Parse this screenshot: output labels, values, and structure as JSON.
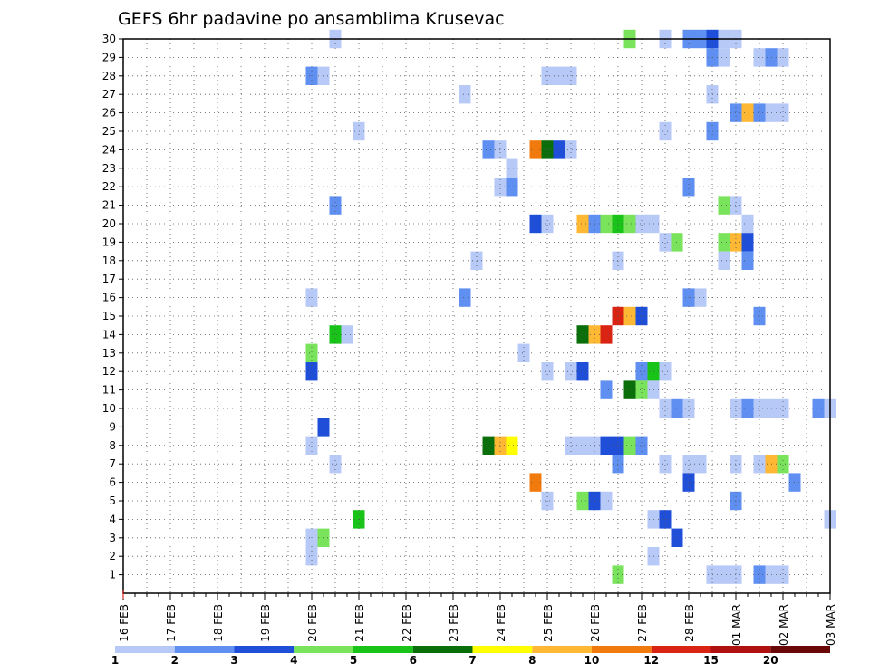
{
  "chart_data": {
    "type": "heatmap",
    "title": "GEFS 6hr padavine po ansamblima Krusevac",
    "x_tick_labels": [
      "16 FEB",
      "17 FEB",
      "18 FEB",
      "19 FEB",
      "20 FEB",
      "21 FEB",
      "22 FEB",
      "23 FEB",
      "24 FEB",
      "25 FEB",
      "26 FEB",
      "27 FEB",
      "28 FEB",
      "01 MAR",
      "02 MAR",
      "03 MAR"
    ],
    "xlim": [
      0,
      60
    ],
    "ylim": [
      0,
      30
    ],
    "y_tick_labels": [
      "1",
      "2",
      "3",
      "4",
      "5",
      "6",
      "7",
      "8",
      "9",
      "10",
      "11",
      "12",
      "13",
      "14",
      "15",
      "16",
      "17",
      "18",
      "19",
      "20",
      "21",
      "22",
      "23",
      "24",
      "25",
      "26",
      "27",
      "28",
      "29",
      "30"
    ],
    "grid": true,
    "colorbar": {
      "labels": [
        "1",
        "2",
        "3",
        "4",
        "5",
        "6",
        "7",
        "8",
        "10",
        "12",
        "15",
        "20"
      ],
      "colors": [
        "#b7c9f7",
        "#5f8ff0",
        "#1f4fd8",
        "#79e35b",
        "#18c418",
        "#0a6e0a",
        "#ffff00",
        "#ffb833",
        "#f07a0d",
        "#d92414",
        "#b11010",
        "#6a0808"
      ]
    },
    "cells": [
      [
        18,
        30,
        1
      ],
      [
        43,
        30,
        4
      ],
      [
        46,
        30,
        1
      ],
      [
        48,
        30,
        2
      ],
      [
        49,
        30,
        2
      ],
      [
        50,
        30,
        3
      ],
      [
        51,
        30,
        1
      ],
      [
        52,
        30,
        1
      ],
      [
        50,
        29,
        2
      ],
      [
        51,
        29,
        1
      ],
      [
        54,
        29,
        1
      ],
      [
        55,
        29,
        2
      ],
      [
        56,
        29,
        1
      ],
      [
        16,
        28,
        2
      ],
      [
        17,
        28,
        1
      ],
      [
        36,
        28,
        1
      ],
      [
        37,
        28,
        1
      ],
      [
        38,
        28,
        1
      ],
      [
        29,
        27,
        1
      ],
      [
        50,
        27,
        1
      ],
      [
        52,
        26,
        2
      ],
      [
        53,
        26,
        8
      ],
      [
        54,
        26,
        2
      ],
      [
        55,
        26,
        1
      ],
      [
        56,
        26,
        1
      ],
      [
        20,
        25,
        1
      ],
      [
        46,
        25,
        1
      ],
      [
        50,
        25,
        2
      ],
      [
        31,
        24,
        2
      ],
      [
        32,
        24,
        1
      ],
      [
        35,
        24,
        9
      ],
      [
        36,
        24,
        6
      ],
      [
        37,
        24,
        3
      ],
      [
        38,
        24,
        1
      ],
      [
        33,
        23,
        1
      ],
      [
        32,
        22,
        1
      ],
      [
        33,
        22,
        2
      ],
      [
        48,
        22,
        2
      ],
      [
        18,
        21,
        2
      ],
      [
        51,
        21,
        4
      ],
      [
        52,
        21,
        1
      ],
      [
        35,
        20,
        3
      ],
      [
        36,
        20,
        1
      ],
      [
        39,
        20,
        8
      ],
      [
        40,
        20,
        2
      ],
      [
        41,
        20,
        4
      ],
      [
        42,
        20,
        5
      ],
      [
        43,
        20,
        4
      ],
      [
        44,
        20,
        1
      ],
      [
        45,
        20,
        1
      ],
      [
        53,
        20,
        1
      ],
      [
        46,
        19,
        1
      ],
      [
        47,
        19,
        4
      ],
      [
        51,
        19,
        4
      ],
      [
        52,
        19,
        8
      ],
      [
        53,
        19,
        3
      ],
      [
        30,
        18,
        1
      ],
      [
        42,
        18,
        1
      ],
      [
        51,
        18,
        1
      ],
      [
        53,
        18,
        2
      ],
      [
        16,
        16,
        1
      ],
      [
        29,
        16,
        2
      ],
      [
        48,
        16,
        2
      ],
      [
        49,
        16,
        1
      ],
      [
        42,
        15,
        10
      ],
      [
        43,
        15,
        8
      ],
      [
        44,
        15,
        3
      ],
      [
        54,
        15,
        2
      ],
      [
        18,
        14,
        5
      ],
      [
        19,
        14,
        1
      ],
      [
        39,
        14,
        6
      ],
      [
        40,
        14,
        8
      ],
      [
        41,
        14,
        10
      ],
      [
        16,
        13,
        4
      ],
      [
        34,
        13,
        1
      ],
      [
        16,
        12,
        3
      ],
      [
        36,
        12,
        1
      ],
      [
        38,
        12,
        1
      ],
      [
        39,
        12,
        3
      ],
      [
        44,
        12,
        2
      ],
      [
        45,
        12,
        5
      ],
      [
        46,
        12,
        1
      ],
      [
        41,
        11,
        2
      ],
      [
        43,
        11,
        6
      ],
      [
        44,
        11,
        4
      ],
      [
        45,
        11,
        1
      ],
      [
        46,
        10,
        1
      ],
      [
        47,
        10,
        2
      ],
      [
        48,
        10,
        1
      ],
      [
        52,
        10,
        1
      ],
      [
        53,
        10,
        2
      ],
      [
        54,
        10,
        1
      ],
      [
        55,
        10,
        1
      ],
      [
        56,
        10,
        1
      ],
      [
        59,
        10,
        2
      ],
      [
        60,
        10,
        1
      ],
      [
        17,
        9,
        3
      ],
      [
        16,
        8,
        1
      ],
      [
        31,
        8,
        6
      ],
      [
        32,
        8,
        8
      ],
      [
        33,
        8,
        7
      ],
      [
        38,
        8,
        1
      ],
      [
        39,
        8,
        1
      ],
      [
        40,
        8,
        1
      ],
      [
        41,
        8,
        3
      ],
      [
        42,
        8,
        3
      ],
      [
        43,
        8,
        4
      ],
      [
        44,
        8,
        2
      ],
      [
        18,
        7,
        1
      ],
      [
        42,
        7,
        2
      ],
      [
        46,
        7,
        1
      ],
      [
        48,
        7,
        1
      ],
      [
        49,
        7,
        1
      ],
      [
        52,
        7,
        1
      ],
      [
        54,
        7,
        1
      ],
      [
        55,
        7,
        8
      ],
      [
        56,
        7,
        4
      ],
      [
        35,
        6,
        9
      ],
      [
        48,
        6,
        3
      ],
      [
        57,
        6,
        2
      ],
      [
        36,
        5,
        1
      ],
      [
        39,
        5,
        4
      ],
      [
        40,
        5,
        3
      ],
      [
        41,
        5,
        1
      ],
      [
        52,
        5,
        2
      ],
      [
        20,
        4,
        5
      ],
      [
        45,
        4,
        1
      ],
      [
        46,
        4,
        3
      ],
      [
        60,
        4,
        1
      ],
      [
        16,
        3,
        1
      ],
      [
        17,
        3,
        4
      ],
      [
        47,
        3,
        3
      ],
      [
        16,
        2,
        1
      ],
      [
        45,
        2,
        1
      ],
      [
        42,
        1,
        4
      ],
      [
        50,
        1,
        1
      ],
      [
        51,
        1,
        1
      ],
      [
        52,
        1,
        1
      ],
      [
        54,
        1,
        2
      ],
      [
        55,
        1,
        1
      ],
      [
        56,
        1,
        1
      ]
    ]
  }
}
